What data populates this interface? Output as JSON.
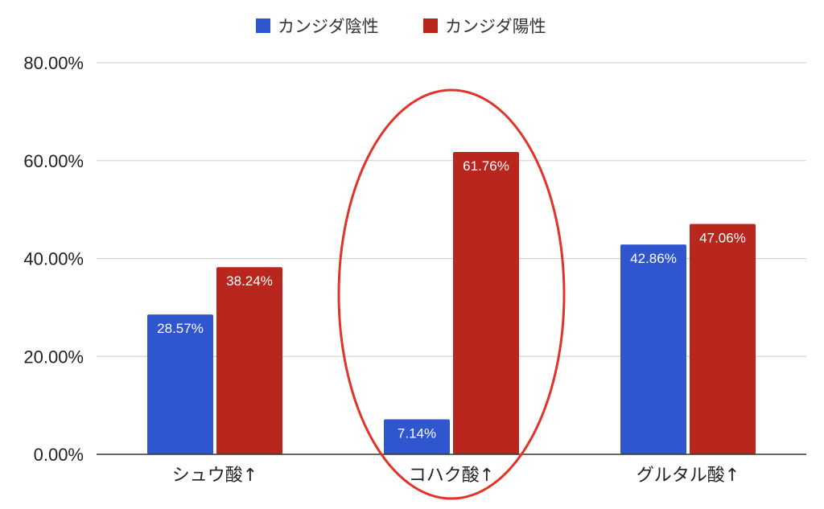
{
  "chart_data": {
    "type": "bar",
    "categories": [
      "シュウ酸↑",
      "コハク酸↑",
      "グルタル酸↑"
    ],
    "series": [
      {
        "name": "カンジダ陰性",
        "values": [
          28.57,
          7.14,
          42.86
        ],
        "color": "#2f55cf"
      },
      {
        "name": "カンジダ陽性",
        "values": [
          38.24,
          61.76,
          47.06
        ],
        "color": "#b8261d"
      }
    ],
    "data_labels": [
      [
        "28.57%",
        "7.14%",
        "42.86%"
      ],
      [
        "38.24%",
        "61.76%",
        "47.06%"
      ]
    ],
    "y_ticks": [
      "0.00%",
      "20.00%",
      "40.00%",
      "60.00%",
      "80.00%"
    ],
    "ylim": [
      0,
      80
    ],
    "grid": true,
    "legend_position": "top",
    "highlight": {
      "category": "コハク酸↑",
      "shape": "ellipse",
      "color": "#e0342a"
    }
  }
}
